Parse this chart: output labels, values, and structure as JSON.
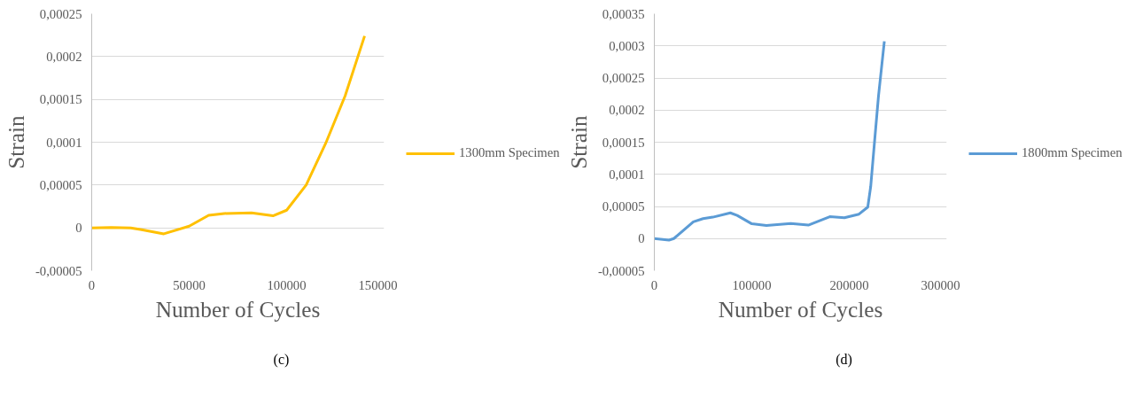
{
  "chart_data": [
    {
      "type": "line",
      "xlabel": "Number of Cycles",
      "ylabel": "Strain",
      "xlim": [
        0,
        150000
      ],
      "xticks": [
        0,
        50000,
        100000,
        150000
      ],
      "ylim": [
        -5e-05,
        0.00025
      ],
      "yticks": [
        {
          "value": -5e-05,
          "label": "-0,00005"
        },
        0,
        {
          "value": 5e-05,
          "label": "0,00005"
        },
        {
          "value": 0.0001,
          "label": "0,0001"
        },
        {
          "value": 0.00015,
          "label": "0,00015"
        },
        {
          "value": 0.0002,
          "label": "0,0002"
        },
        {
          "value": 0.00025,
          "label": "0,00025"
        }
      ],
      "grid": "y",
      "legend": "right",
      "line_style": "solid",
      "annotations": [
        "(c)"
      ],
      "series": [
        {
          "name": "1300mm Specimen",
          "color": "#ffc000",
          "x": [
            0,
            10000,
            20000,
            25000,
            37000,
            50000,
            60000,
            68000,
            82000,
            93000,
            100000,
            110000,
            120000,
            130000,
            140000
          ],
          "values": [
            0,
            5e-07,
            0,
            -2e-06,
            -7e-06,
            2e-06,
            1.47e-05,
            1.68e-05,
            1.76e-05,
            1.41e-05,
            2.06e-05,
            5e-05,
            9.85e-05,
            0.000154,
            0.000224
          ]
        }
      ]
    },
    {
      "type": "line",
      "xlabel": "Number of Cycles",
      "ylabel": "Strain",
      "xlim": [
        0,
        300000
      ],
      "xticks": [
        0,
        100000,
        200000,
        300000
      ],
      "ylim": [
        -5e-05,
        0.00035
      ],
      "yticks": [
        {
          "value": -5e-05,
          "label": "-0,00005"
        },
        0,
        {
          "value": 5e-05,
          "label": "0,00005"
        },
        {
          "value": 0.0001,
          "label": "0,0001"
        },
        {
          "value": 0.00015,
          "label": "0,00015"
        },
        {
          "value": 0.0002,
          "label": "0,0002"
        },
        {
          "value": 0.00025,
          "label": "0,00025"
        },
        {
          "value": 0.0003,
          "label": "0,0003"
        },
        {
          "value": 0.00035,
          "label": "0,00035"
        }
      ],
      "grid": "y",
      "legend": "right",
      "line_style": "solid",
      "annotations": [
        "(d)"
      ],
      "series": [
        {
          "name": "1800mm Specimen",
          "color": "#5b9bd5",
          "x": [
            0,
            15000,
            20000,
            40000,
            50000,
            60000,
            78000,
            85000,
            100000,
            115000,
            140000,
            158000,
            180000,
            195000,
            210000,
            219000,
            222000,
            226000,
            230000,
            236000
          ],
          "values": [
            0,
            -2.4e-06,
            0,
            2.6e-05,
            3.1e-05,
            3.33e-05,
            4e-05,
            3.6e-05,
            2.3e-05,
            2.04e-05,
            2.35e-05,
            2.1e-05,
            3.4e-05,
            3.25e-05,
            3.8e-05,
            4.9e-05,
            8.1e-05,
            0.000152,
            0.000222,
            0.000307
          ]
        }
      ]
    }
  ]
}
